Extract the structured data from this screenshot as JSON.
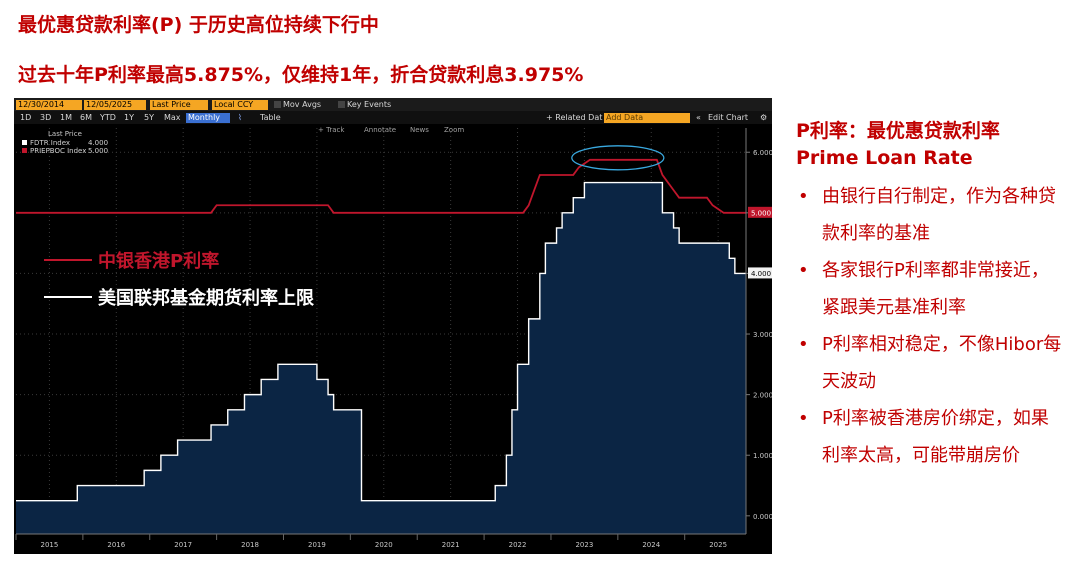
{
  "title": "最优惠贷款利率(P) 于历史高位持续下行中",
  "subtitle": "过去十年P利率最高5.875%，仅维持1年，折合贷款利息3.975%",
  "terminal": {
    "start_date": "12/30/2014",
    "end_date": "12/05/2025",
    "field": "Last Price",
    "currency": "Local CCY",
    "mov_avgs": "Mov Avgs",
    "key_events": "Key Events",
    "periods": [
      "1D",
      "3D",
      "1M",
      "6M",
      "YTD",
      "1Y",
      "5Y",
      "Max"
    ],
    "frequency": "Monthly",
    "table": "Table",
    "related": "+ Related Dat",
    "add_data": "Add Data",
    "edit_chart": "Edit Chart",
    "tools": [
      "+ Track",
      "Annotate",
      "News",
      "Zoom"
    ],
    "legend_header": "Last Price",
    "legend": [
      {
        "label": "FDTR Index",
        "value": "4.000"
      },
      {
        "label": "PRIEPBOC Index",
        "value": "5.000"
      }
    ],
    "overlay_legend": [
      "中银香港P利率",
      "美国联邦基金期货利率上限"
    ]
  },
  "colors": {
    "title": "#c00000",
    "p_rate": "#c0162c",
    "fed_line": "#ffffff",
    "fed_fill": "#0b2544",
    "label_orange": "#f5a623"
  },
  "chart_data": {
    "type": "line",
    "x_ticks": [
      "2015",
      "2016",
      "2017",
      "2018",
      "2019",
      "2020",
      "2021",
      "2022",
      "2023",
      "2024",
      "2025"
    ],
    "y_ticks": [
      "0.000",
      "1.000",
      "2.000",
      "3.000",
      "4.000",
      "5.000",
      "6.000"
    ],
    "ylim": [
      -0.3,
      6.4
    ],
    "xlim": [
      "2015-01",
      "2025-12"
    ],
    "series": [
      {
        "name": "PRIEPBOC Index",
        "last": "5.000",
        "points": [
          [
            "2015-01",
            5.0
          ],
          [
            "2017-12",
            5.0
          ],
          [
            "2018-01",
            5.125
          ],
          [
            "2018-12",
            5.125
          ],
          [
            "2019-01",
            5.125
          ],
          [
            "2019-09",
            5.125
          ],
          [
            "2019-10",
            5.0
          ],
          [
            "2022-08",
            5.0
          ],
          [
            "2022-09",
            5.125
          ],
          [
            "2022-10",
            5.375
          ],
          [
            "2022-11",
            5.625
          ],
          [
            "2023-05",
            5.625
          ],
          [
            "2023-06",
            5.75
          ],
          [
            "2023-08",
            5.875
          ],
          [
            "2024-08",
            5.875
          ],
          [
            "2024-09",
            5.625
          ],
          [
            "2024-11",
            5.375
          ],
          [
            "2024-12",
            5.25
          ],
          [
            "2025-05",
            5.25
          ],
          [
            "2025-06",
            5.125
          ],
          [
            "2025-08",
            5.0
          ],
          [
            "2025-12",
            5.0
          ]
        ]
      },
      {
        "name": "FDTR Index",
        "last": "4.000",
        "points": [
          [
            "2015-01",
            0.25
          ],
          [
            "2015-12",
            0.25
          ],
          [
            "2015-12",
            0.5
          ],
          [
            "2016-12",
            0.5
          ],
          [
            "2016-12",
            0.75
          ],
          [
            "2017-03",
            0.75
          ],
          [
            "2017-03",
            1.0
          ],
          [
            "2017-06",
            1.0
          ],
          [
            "2017-06",
            1.25
          ],
          [
            "2017-12",
            1.25
          ],
          [
            "2017-12",
            1.5
          ],
          [
            "2018-03",
            1.5
          ],
          [
            "2018-03",
            1.75
          ],
          [
            "2018-06",
            1.75
          ],
          [
            "2018-06",
            2.0
          ],
          [
            "2018-09",
            2.0
          ],
          [
            "2018-09",
            2.25
          ],
          [
            "2018-12",
            2.25
          ],
          [
            "2018-12",
            2.5
          ],
          [
            "2019-07",
            2.5
          ],
          [
            "2019-07",
            2.25
          ],
          [
            "2019-09",
            2.25
          ],
          [
            "2019-09",
            2.0
          ],
          [
            "2019-10",
            2.0
          ],
          [
            "2019-10",
            1.75
          ],
          [
            "2020-03",
            1.75
          ],
          [
            "2020-03",
            0.25
          ],
          [
            "2022-03",
            0.25
          ],
          [
            "2022-03",
            0.5
          ],
          [
            "2022-05",
            0.5
          ],
          [
            "2022-05",
            1.0
          ],
          [
            "2022-06",
            1.0
          ],
          [
            "2022-06",
            1.75
          ],
          [
            "2022-07",
            1.75
          ],
          [
            "2022-07",
            2.5
          ],
          [
            "2022-09",
            2.5
          ],
          [
            "2022-09",
            3.25
          ],
          [
            "2022-11",
            3.25
          ],
          [
            "2022-11",
            4.0
          ],
          [
            "2022-12",
            4.0
          ],
          [
            "2022-12",
            4.5
          ],
          [
            "2023-02",
            4.5
          ],
          [
            "2023-02",
            4.75
          ],
          [
            "2023-03",
            4.75
          ],
          [
            "2023-03",
            5.0
          ],
          [
            "2023-05",
            5.0
          ],
          [
            "2023-05",
            5.25
          ],
          [
            "2023-07",
            5.25
          ],
          [
            "2023-07",
            5.5
          ],
          [
            "2024-09",
            5.5
          ],
          [
            "2024-09",
            5.0
          ],
          [
            "2024-11",
            5.0
          ],
          [
            "2024-11",
            4.75
          ],
          [
            "2024-12",
            4.75
          ],
          [
            "2024-12",
            4.5
          ],
          [
            "2025-09",
            4.5
          ],
          [
            "2025-09",
            4.25
          ],
          [
            "2025-10",
            4.25
          ],
          [
            "2025-10",
            4.0
          ],
          [
            "2025-12",
            4.0
          ]
        ]
      }
    ]
  },
  "sidebar": {
    "title_cn": "P利率：最优惠贷款利率",
    "title_en": "Prime Loan Rate",
    "bullets": [
      "由银行自行制定，作为各种贷款利率的基准",
      "各家银行P利率都非常接近，紧跟美元基准利率",
      "P利率相对稳定，不像Hibor每天波动",
      "P利率被香港房价绑定，如果利率太高，可能带崩房价"
    ]
  }
}
